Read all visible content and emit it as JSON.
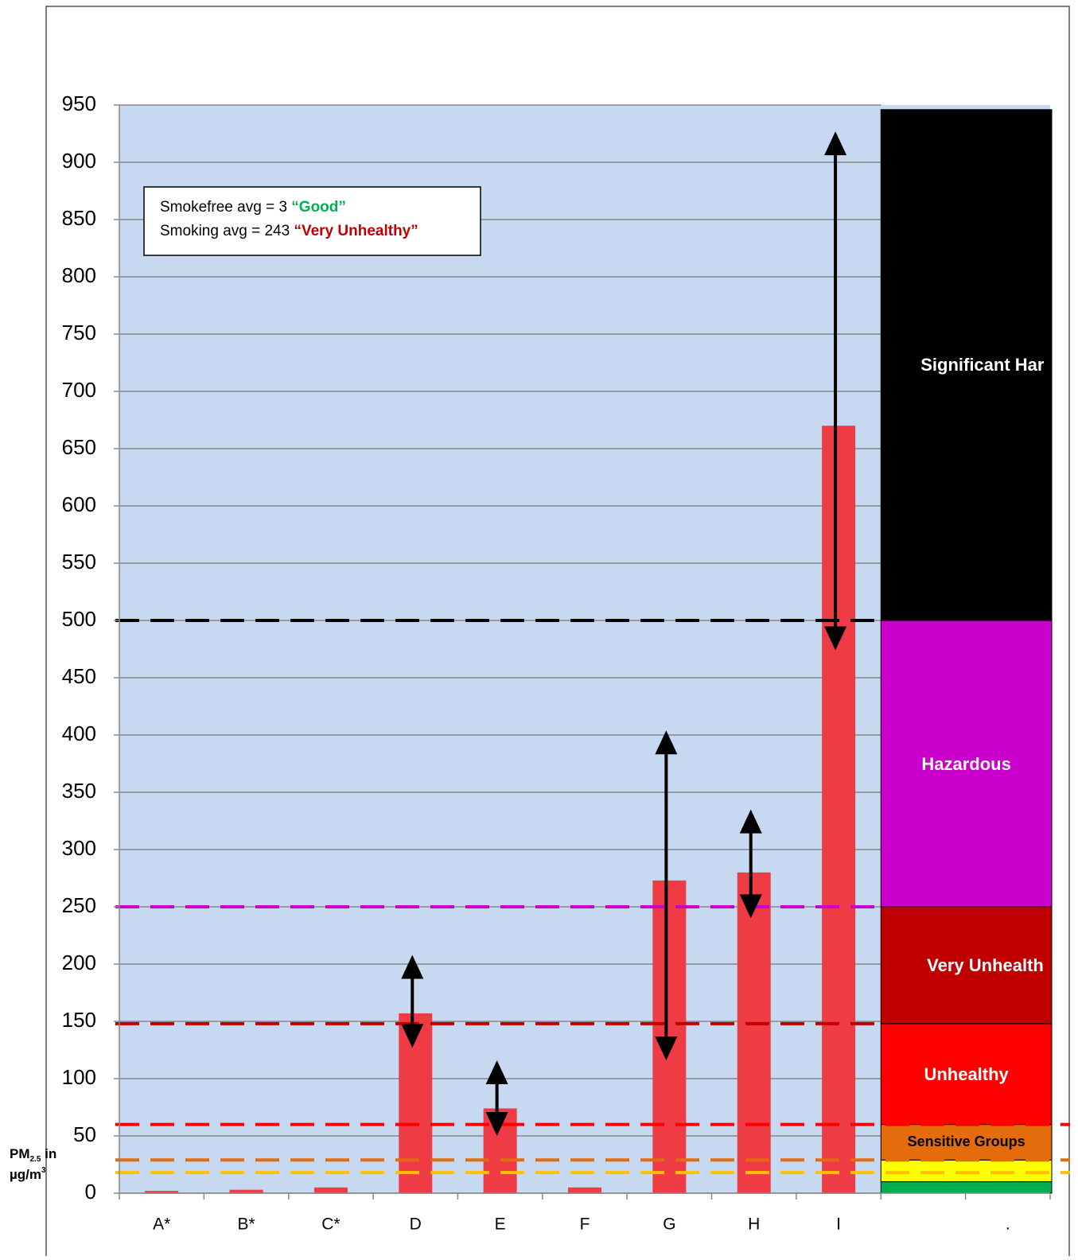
{
  "chart_data": {
    "type": "bar",
    "categories": [
      "A*",
      "B*",
      "C*",
      "D",
      "E",
      "F",
      "G",
      "H",
      "I",
      null,
      "."
    ],
    "values": [
      2,
      3,
      5,
      157,
      74,
      5,
      273,
      280,
      670,
      null,
      null
    ],
    "color": "#ef3b44",
    "error_ranges": [
      null,
      null,
      null,
      [
        127,
        208
      ],
      [
        50,
        116
      ],
      null,
      [
        116,
        404
      ],
      [
        240,
        335
      ],
      [
        474,
        927
      ],
      null,
      null
    ],
    "ylim": [
      0,
      950
    ],
    "yticks": [
      0,
      50,
      100,
      150,
      200,
      250,
      300,
      350,
      400,
      450,
      500,
      550,
      600,
      650,
      700,
      750,
      800,
      850,
      900,
      950
    ],
    "grid": true,
    "y_label": {
      "main": "PM",
      "sub": "2.5",
      "rest": " in",
      "line2": "µg/m",
      "sup": "3"
    },
    "annotation": [
      {
        "text": "Smokefree avg = 3 ",
        "highlight": "“Good”",
        "color": "#00b050"
      },
      {
        "text": "Smoking avg = 243 ",
        "highlight": "“Very Unhealthy”",
        "color": "#c00000"
      }
    ],
    "thresholds": [
      {
        "value": 500,
        "color": "#000000"
      },
      {
        "value": 250,
        "color": "#cc00cc"
      },
      {
        "value": 148,
        "color": "#c00000"
      },
      {
        "value": 60,
        "color": "#ff0000"
      },
      {
        "value": 29,
        "color": "#e46c0a"
      },
      {
        "value": 18,
        "color": "#ffc000"
      }
    ],
    "bands": [
      {
        "from": 0,
        "to": 10,
        "color": "#00b050"
      },
      {
        "from": 10,
        "to": 29,
        "color": "#ffff00"
      },
      {
        "from": 29,
        "to": 60,
        "color": "#e46c0a",
        "label": "Sensitive Groups",
        "text_color": "#000000"
      },
      {
        "from": 60,
        "to": 148,
        "color": "#ff0000",
        "label": "Unhealthy",
        "text_color": "#ffffff"
      },
      {
        "from": 148,
        "to": 250,
        "color": "#c00000",
        "label": "Very Unhealthy",
        "text_color": "#ffffff"
      },
      {
        "from": 250,
        "to": 500,
        "color": "#cc00cc",
        "label": "Hazardous",
        "text_color": "#ffffff"
      },
      {
        "from": 500,
        "to": 946,
        "color": "#000000",
        "label": "Significant Harm",
        "text_color": "#ffffff"
      }
    ]
  }
}
